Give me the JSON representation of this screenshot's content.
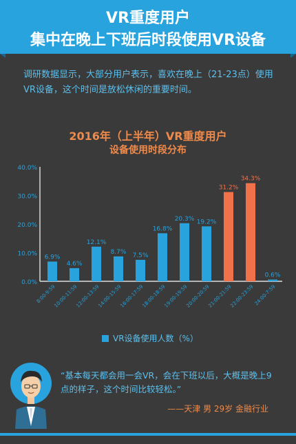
{
  "header": {
    "title_line1": "VR重度用户",
    "title_line2": "集中在晚上下班后时段使用VR设备"
  },
  "intro": "调研数据显示，大部分用户表示，喜欢在晚上（21-23点）使用VR设备，这个时间是放松休闲的重要时间。",
  "colors": {
    "accent": "#29a3de",
    "highlight": "#f0714a",
    "background": "#3a3a3a"
  },
  "chart_data": {
    "type": "bar",
    "title": "2016年（上半年）VR重度用户",
    "subtitle": "设备使用时段分布",
    "categories": [
      "8:00-9:59",
      "10:00-11:59",
      "12:00-13:59",
      "14:00-15:59",
      "16:00-17:59",
      "18:00-18:59",
      "19:00-19:59",
      "20:00-20:59",
      "21:00-21:59",
      "22:00-23:59",
      "24:00-7:59"
    ],
    "values": [
      6.9,
      4.6,
      12.1,
      8.7,
      7.5,
      16.8,
      20.3,
      19.2,
      31.2,
      34.3,
      0.6
    ],
    "value_labels": [
      "6.9%",
      "4.6%",
      "12.1%",
      "8.7%",
      "7.5%",
      "16.8%",
      "20.3%",
      "19.2%",
      "31.2%",
      "34.3%",
      "0.6%"
    ],
    "highlight": [
      false,
      false,
      false,
      false,
      false,
      false,
      false,
      false,
      true,
      true,
      false
    ],
    "ylim": [
      0,
      40
    ],
    "yticks": [
      "0.0%",
      "10.0%",
      "20.0%",
      "30.0%",
      "40.0%"
    ],
    "legend": "VR设备使用人数（%）"
  },
  "quote": {
    "text": "“基本每天都会用一会VR，会在下班以后，大概是晚上9点的样子，这个时间比较轻松。”",
    "attribution": "——天津  男  29岁   金融行业"
  }
}
